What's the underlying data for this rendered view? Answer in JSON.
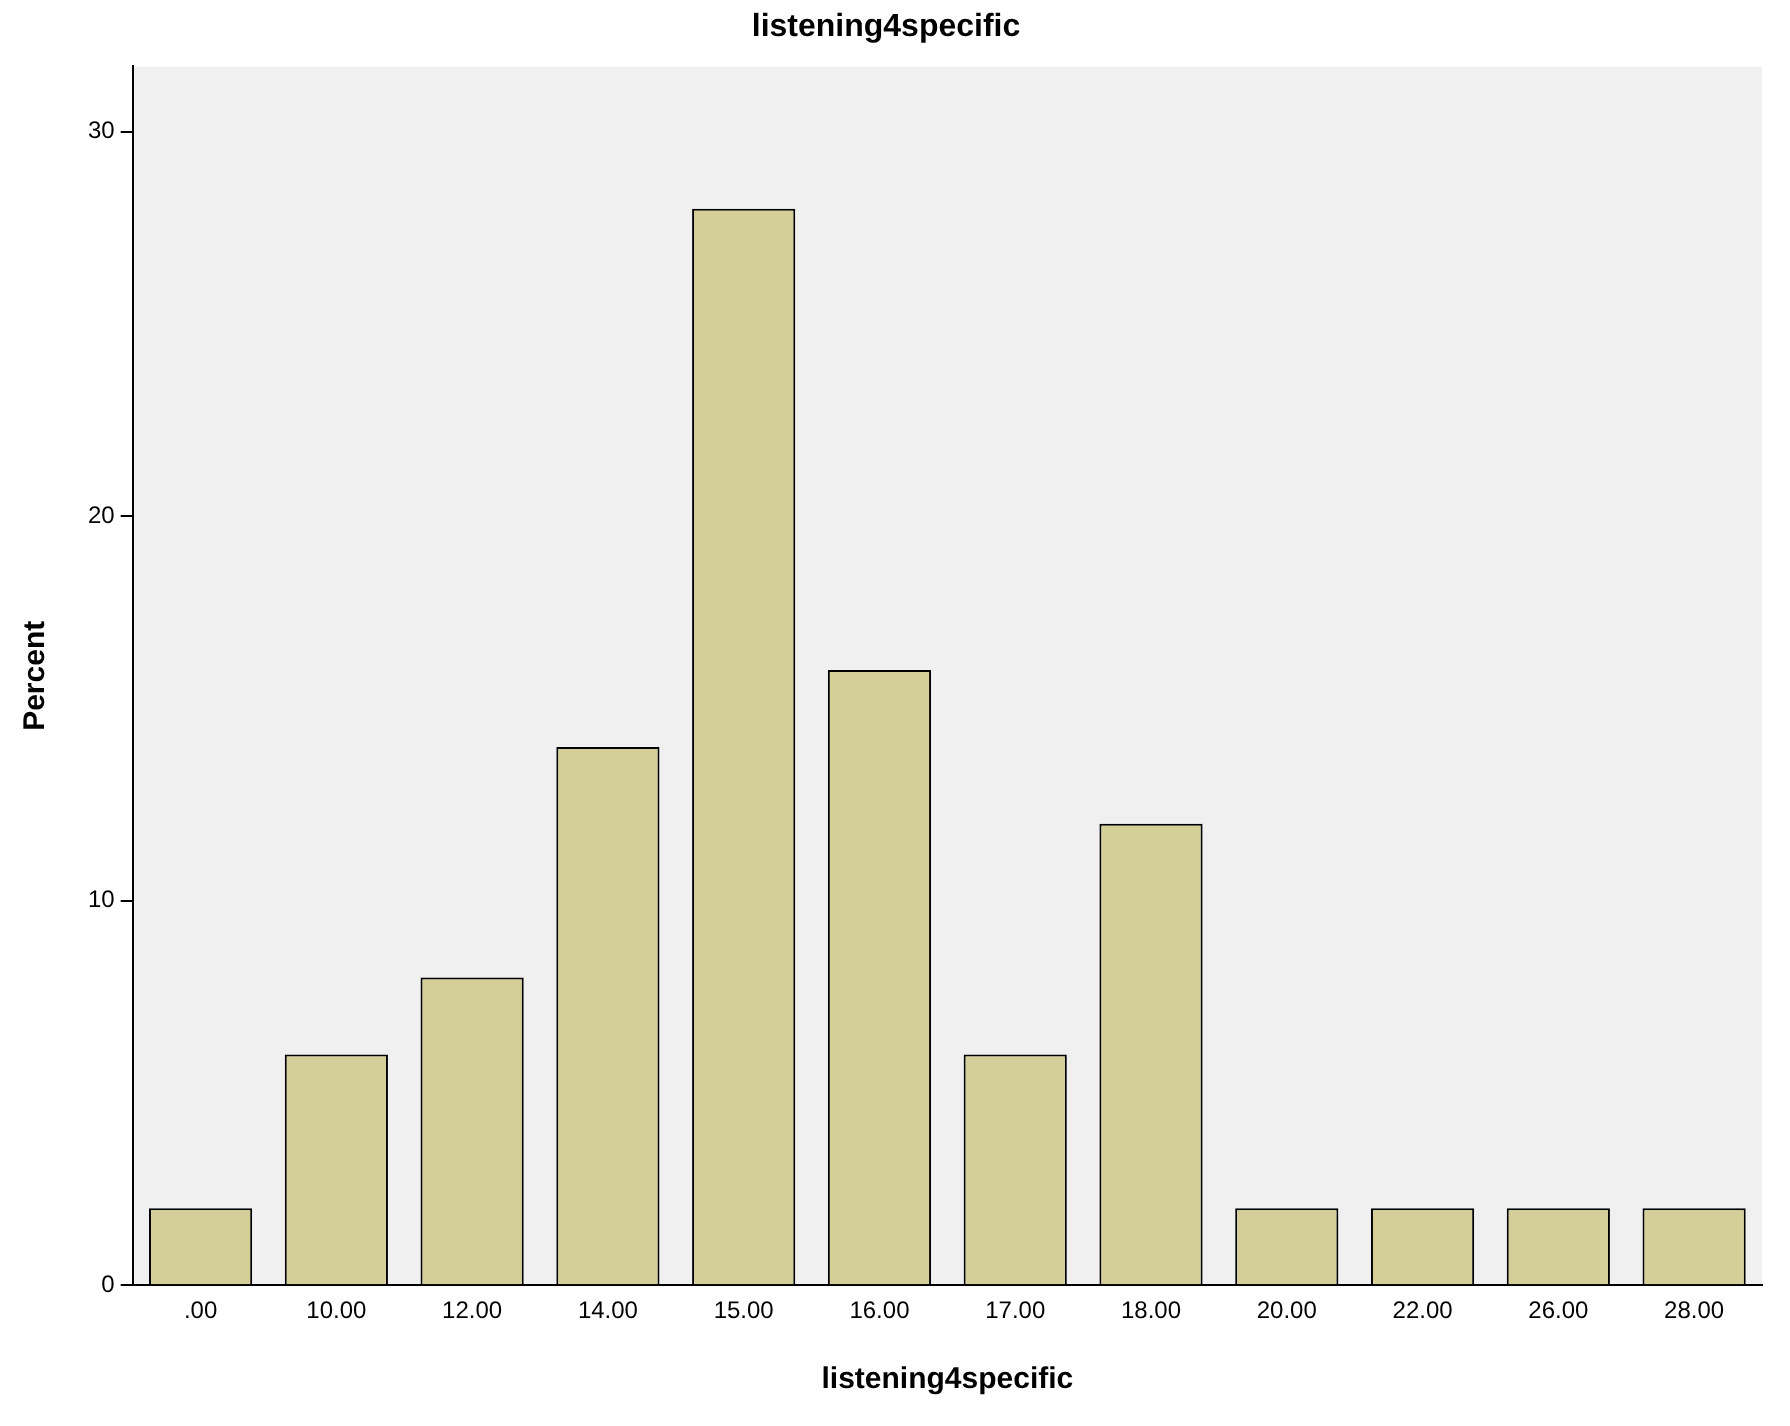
{
  "chart_data": {
    "type": "bar",
    "title": "listening4specific",
    "xlabel": "listening4specific",
    "ylabel": "Percent",
    "categories": [
      ".00",
      "10.00",
      "12.00",
      "14.00",
      "15.00",
      "16.00",
      "17.00",
      "18.00",
      "20.00",
      "22.00",
      "26.00",
      "28.00"
    ],
    "values": [
      2,
      6,
      8,
      14,
      28,
      16,
      6,
      12,
      2,
      2,
      2,
      2
    ],
    "color": "#d4cf98",
    "ylim": [
      0,
      31.7
    ],
    "yticks": [
      0,
      10,
      20,
      30
    ],
    "grid": false
  }
}
